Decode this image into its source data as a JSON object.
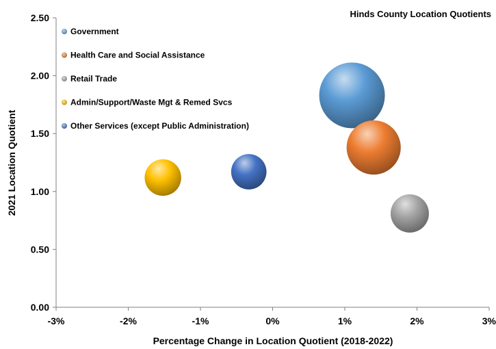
{
  "chart_data": {
    "type": "bubble",
    "title": "Hinds County Location Quotients",
    "xlabel": "Percentage Change in Location Quotient (2018-2022)",
    "ylabel": "2021 Location Quotient",
    "xlim": [
      -3,
      3
    ],
    "ylim": [
      0,
      2.5
    ],
    "x_ticks": [
      "-3%",
      "-2%",
      "-1%",
      "0%",
      "1%",
      "2%",
      "3%"
    ],
    "y_ticks": [
      "0.00",
      "0.50",
      "1.00",
      "1.50",
      "2.00",
      "2.50"
    ],
    "grid": false,
    "legend_position": "top-left",
    "series": [
      {
        "name": "Government",
        "x": 1.1,
        "y": 1.83,
        "size": 100,
        "color": "#5b9bd5"
      },
      {
        "name": "Health Care and Social Assistance",
        "x": 1.4,
        "y": 1.38,
        "size": 68,
        "color": "#ed7d31"
      },
      {
        "name": "Retail Trade",
        "x": 1.9,
        "y": 0.81,
        "size": 34,
        "color": "#a5a5a5"
      },
      {
        "name": "Admin/Support/Waste Mgt & Remed Svcs",
        "x": -1.52,
        "y": 1.12,
        "size": 31,
        "color": "#ffc000"
      },
      {
        "name": "Other Services (except Public Administration)",
        "x": -0.33,
        "y": 1.17,
        "size": 29,
        "color": "#4472c4"
      }
    ]
  }
}
